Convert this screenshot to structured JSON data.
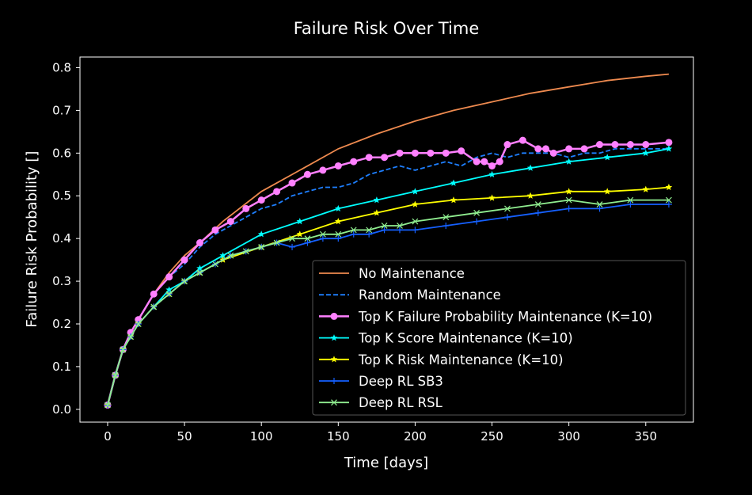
{
  "chart_data": {
    "type": "line",
    "title": "Failure Risk Over Time",
    "xlabel": "Time [days]",
    "ylabel": "Failure Risk Probability []",
    "xlim": [
      -18,
      381
    ],
    "ylim": [
      -0.03,
      0.825
    ],
    "xticks": [
      0,
      50,
      100,
      150,
      200,
      250,
      300,
      350
    ],
    "xtick_labels": [
      "0",
      "50",
      "100",
      "150",
      "200",
      "250",
      "300",
      "350"
    ],
    "yticks": [
      0.0,
      0.1,
      0.2,
      0.3,
      0.4,
      0.5,
      0.6,
      0.7,
      0.8
    ],
    "ytick_labels": [
      "0.0",
      "0.1",
      "0.2",
      "0.3",
      "0.4",
      "0.5",
      "0.6",
      "0.7",
      "0.8"
    ],
    "grid": false,
    "legend_position": "lower-right",
    "series": [
      {
        "name": "No Maintenance",
        "color": "#ee8a4f",
        "style": "solid",
        "marker": "none",
        "x": [
          0,
          5,
          10,
          15,
          20,
          30,
          40,
          50,
          60,
          75,
          100,
          125,
          150,
          175,
          200,
          225,
          250,
          275,
          300,
          325,
          350,
          365
        ],
        "y": [
          0.01,
          0.08,
          0.14,
          0.18,
          0.21,
          0.27,
          0.32,
          0.36,
          0.39,
          0.44,
          0.51,
          0.56,
          0.61,
          0.645,
          0.675,
          0.7,
          0.72,
          0.74,
          0.755,
          0.77,
          0.78,
          0.785
        ]
      },
      {
        "name": "Random Maintenance",
        "color": "#1e7fff",
        "style": "dashed",
        "marker": "none",
        "x": [
          0,
          5,
          10,
          15,
          20,
          30,
          40,
          50,
          60,
          70,
          80,
          90,
          100,
          110,
          120,
          130,
          140,
          150,
          160,
          170,
          180,
          190,
          200,
          210,
          220,
          230,
          240,
          250,
          260,
          270,
          280,
          290,
          300,
          310,
          320,
          330,
          340,
          350,
          365
        ],
        "y": [
          0.01,
          0.08,
          0.14,
          0.18,
          0.21,
          0.27,
          0.31,
          0.34,
          0.38,
          0.41,
          0.43,
          0.45,
          0.47,
          0.48,
          0.5,
          0.51,
          0.52,
          0.52,
          0.53,
          0.55,
          0.56,
          0.57,
          0.56,
          0.57,
          0.58,
          0.57,
          0.59,
          0.6,
          0.59,
          0.6,
          0.6,
          0.6,
          0.59,
          0.6,
          0.6,
          0.61,
          0.61,
          0.61,
          0.61
        ]
      },
      {
        "name": "Top K Failure Probability Maintenance (K=10)",
        "color": "#ff80ff",
        "style": "solid",
        "marker": "circle",
        "x": [
          0,
          5,
          10,
          15,
          20,
          30,
          40,
          50,
          60,
          70,
          80,
          90,
          100,
          110,
          120,
          130,
          140,
          150,
          160,
          170,
          180,
          190,
          200,
          210,
          220,
          230,
          240,
          245,
          250,
          255,
          260,
          270,
          280,
          285,
          290,
          300,
          310,
          320,
          330,
          340,
          350,
          365
        ],
        "y": [
          0.01,
          0.08,
          0.14,
          0.18,
          0.21,
          0.27,
          0.31,
          0.35,
          0.39,
          0.42,
          0.44,
          0.47,
          0.49,
          0.51,
          0.53,
          0.55,
          0.56,
          0.57,
          0.58,
          0.59,
          0.59,
          0.6,
          0.6,
          0.6,
          0.6,
          0.605,
          0.58,
          0.58,
          0.57,
          0.58,
          0.62,
          0.63,
          0.61,
          0.61,
          0.6,
          0.61,
          0.61,
          0.62,
          0.62,
          0.62,
          0.62,
          0.625
        ]
      },
      {
        "name": "Top K Score Maintenance (K=10)",
        "color": "#00ffff",
        "style": "solid",
        "marker": "star",
        "x": [
          0,
          5,
          10,
          15,
          20,
          30,
          40,
          50,
          60,
          75,
          100,
          125,
          150,
          175,
          200,
          225,
          250,
          275,
          300,
          325,
          350,
          365
        ],
        "y": [
          0.01,
          0.08,
          0.14,
          0.17,
          0.2,
          0.24,
          0.28,
          0.3,
          0.33,
          0.36,
          0.41,
          0.44,
          0.47,
          0.49,
          0.51,
          0.53,
          0.55,
          0.565,
          0.58,
          0.59,
          0.6,
          0.61
        ]
      },
      {
        "name": "Top K Risk Maintenance (K=10)",
        "color": "#ffff00",
        "style": "solid",
        "marker": "star",
        "x": [
          0,
          5,
          10,
          15,
          20,
          30,
          40,
          50,
          60,
          75,
          100,
          125,
          150,
          175,
          200,
          225,
          250,
          275,
          300,
          325,
          350,
          365
        ],
        "y": [
          0.01,
          0.08,
          0.14,
          0.17,
          0.2,
          0.24,
          0.27,
          0.3,
          0.32,
          0.35,
          0.38,
          0.41,
          0.44,
          0.46,
          0.48,
          0.49,
          0.495,
          0.5,
          0.51,
          0.51,
          0.515,
          0.52
        ]
      },
      {
        "name": "Deep RL SB3",
        "color": "#1560ff",
        "style": "solid",
        "marker": "plus",
        "x": [
          0,
          5,
          10,
          15,
          20,
          30,
          40,
          50,
          60,
          70,
          80,
          90,
          100,
          110,
          120,
          130,
          140,
          150,
          160,
          170,
          180,
          190,
          200,
          220,
          240,
          260,
          280,
          300,
          320,
          340,
          365
        ],
        "y": [
          0.01,
          0.08,
          0.14,
          0.17,
          0.2,
          0.24,
          0.27,
          0.3,
          0.32,
          0.34,
          0.36,
          0.37,
          0.38,
          0.39,
          0.38,
          0.39,
          0.4,
          0.4,
          0.41,
          0.41,
          0.42,
          0.42,
          0.42,
          0.43,
          0.44,
          0.45,
          0.46,
          0.47,
          0.47,
          0.48,
          0.48
        ]
      },
      {
        "name": "Deep RL RSL",
        "color": "#90ee90",
        "style": "solid",
        "marker": "x",
        "x": [
          0,
          5,
          10,
          15,
          20,
          30,
          40,
          50,
          60,
          70,
          80,
          90,
          100,
          110,
          120,
          130,
          140,
          150,
          160,
          170,
          180,
          190,
          200,
          220,
          240,
          260,
          280,
          300,
          320,
          340,
          365
        ],
        "y": [
          0.01,
          0.08,
          0.14,
          0.17,
          0.2,
          0.24,
          0.27,
          0.3,
          0.32,
          0.34,
          0.36,
          0.37,
          0.38,
          0.39,
          0.4,
          0.4,
          0.41,
          0.41,
          0.42,
          0.42,
          0.43,
          0.43,
          0.44,
          0.45,
          0.46,
          0.47,
          0.48,
          0.49,
          0.48,
          0.49,
          0.49
        ]
      }
    ]
  }
}
